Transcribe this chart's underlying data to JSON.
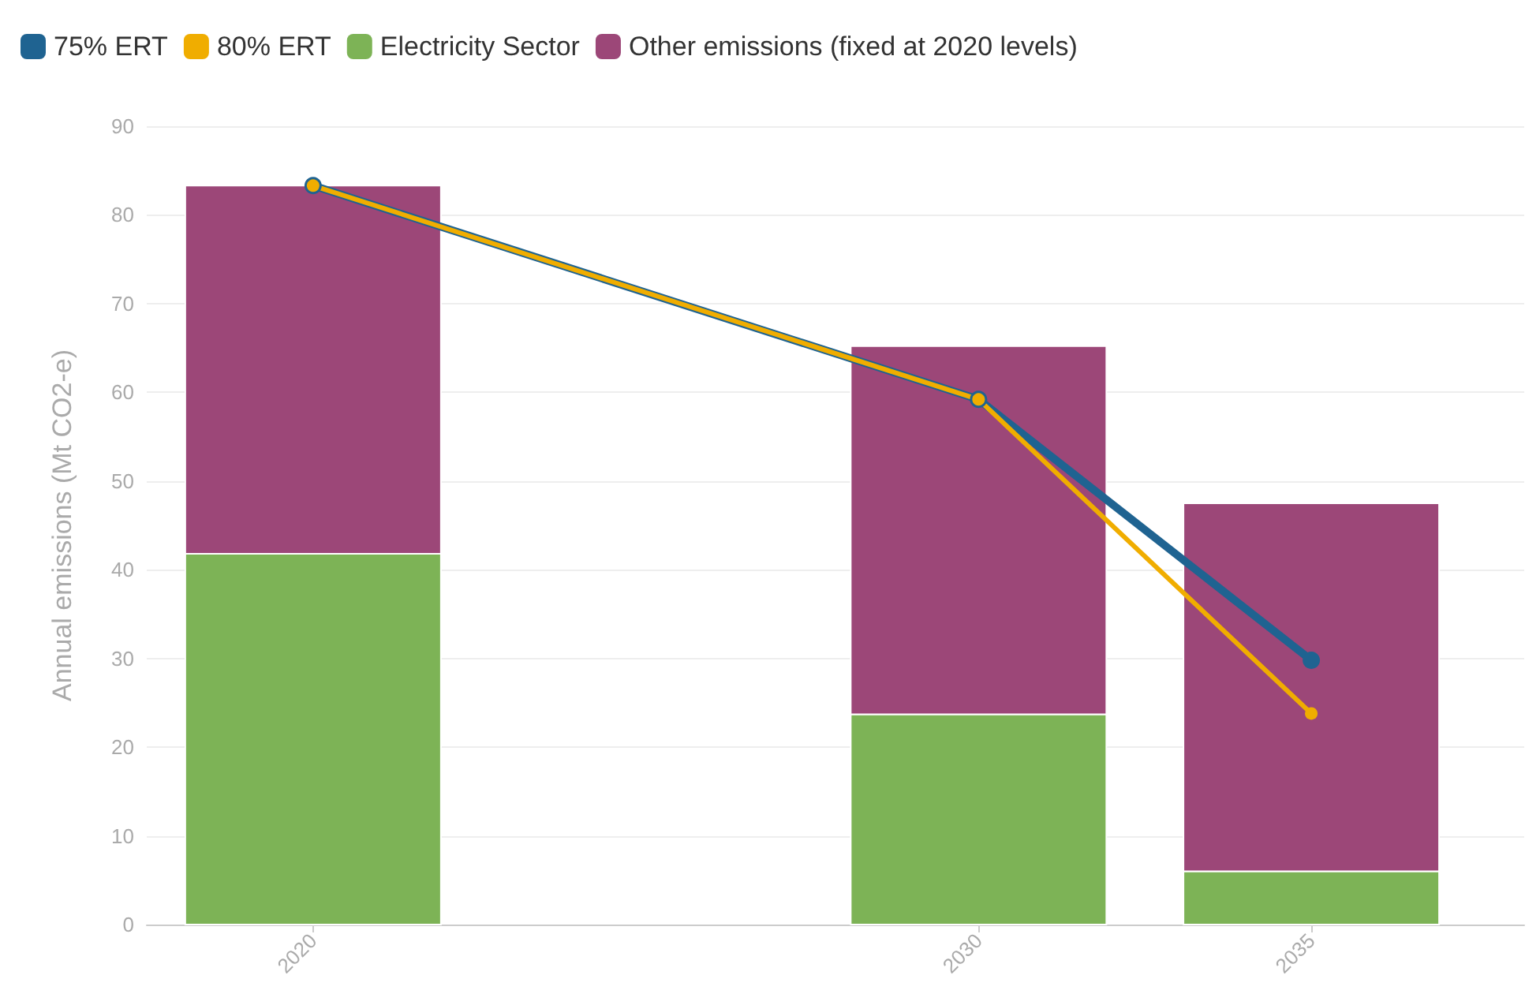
{
  "chart_data": {
    "type": "bar",
    "stacked": true,
    "ylabel": "Annual emissions (Mt CO2-e)",
    "x": [
      2020,
      2030,
      2035
    ],
    "xlim": [
      2017.5,
      2038.2
    ],
    "xticks": [
      2020,
      2030,
      2035
    ],
    "ylim": [
      0,
      90
    ],
    "yticks": [
      0,
      10,
      20,
      30,
      40,
      50,
      60,
      70,
      80,
      90
    ],
    "grid": "y",
    "legend": "top left",
    "marker": "circle",
    "line_style": "solid",
    "series": [
      {
        "name": "75% ERT",
        "type": "line",
        "color": "#1f6391",
        "values": [
          83.3,
          59.2,
          29.8
        ]
      },
      {
        "name": "80% ERT",
        "type": "line",
        "color": "#f0ad00",
        "values": [
          83.3,
          59.2,
          23.8
        ]
      },
      {
        "name": "Electricity Sector",
        "color": "#7db356",
        "values": [
          41.8,
          23.7,
          6.0
        ]
      },
      {
        "name": "Other emissions (fixed at 2020 levels)",
        "color": "#9c4778",
        "values": [
          41.5,
          41.5,
          41.5
        ]
      }
    ]
  }
}
